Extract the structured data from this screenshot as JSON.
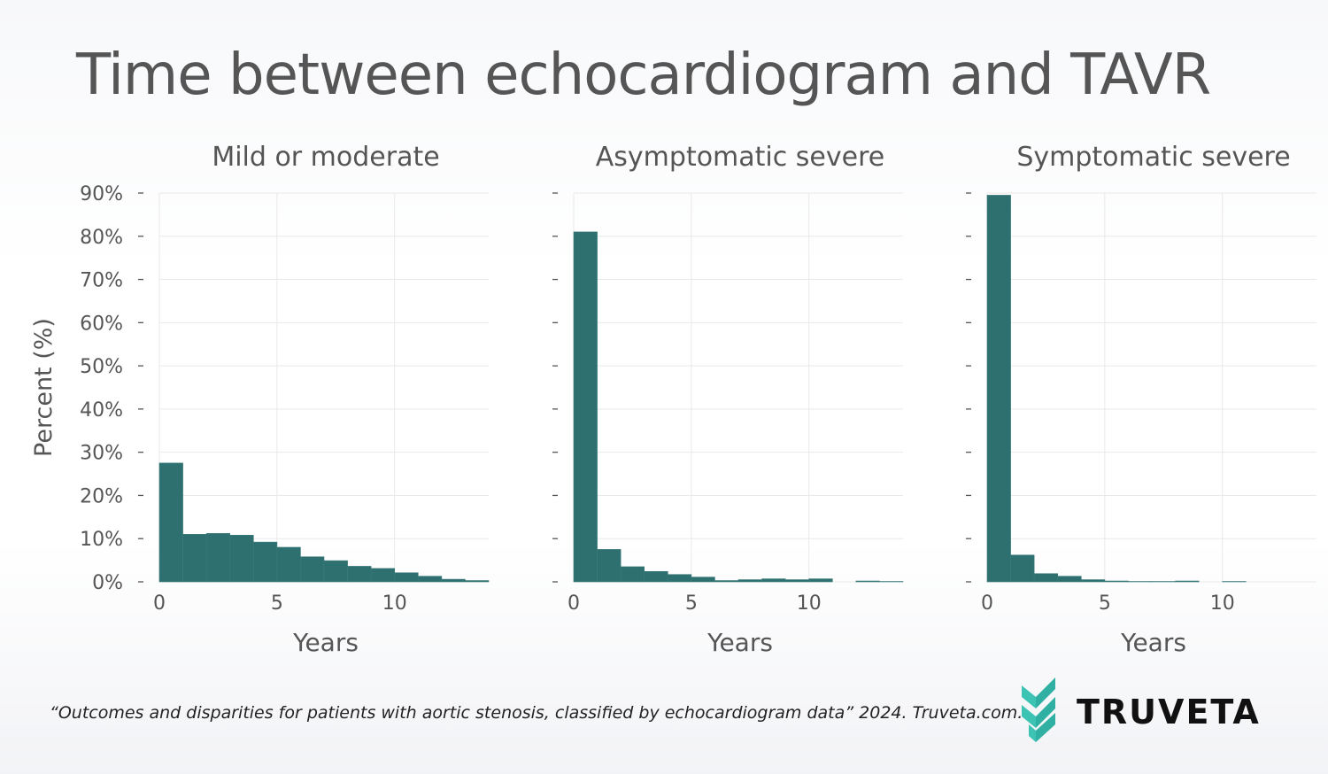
{
  "title": "Time between echocardiogram and TAVR",
  "citation": "“Outcomes and disparities for patients with aortic stenosis, classified by echocardiogram data” 2024. Truveta.com.",
  "brand": {
    "name": "TRUVETA",
    "logo_icon": "truveta-chevron-logo-icon",
    "logo_color": "#3cc3b4"
  },
  "colors": {
    "bar": "#2e7070",
    "grid": "#e9e9e9",
    "text": "#555555"
  },
  "chart_data": [
    {
      "type": "bar",
      "title": "Mild or moderate",
      "xlabel": "Years",
      "ylabel": "Percent (%)",
      "xlim": [
        0,
        14
      ],
      "ylim": [
        0,
        90
      ],
      "x_ticks": [
        0,
        5,
        10
      ],
      "y_ticks": [
        "0%",
        "10%",
        "20%",
        "30%",
        "40%",
        "50%",
        "60%",
        "70%",
        "80%",
        "90%"
      ],
      "bin_width": 1,
      "bins": [
        0,
        1,
        2,
        3,
        4,
        5,
        6,
        7,
        8,
        9,
        10,
        11,
        12,
        13
      ],
      "values": [
        27.5,
        11.0,
        11.2,
        10.8,
        9.2,
        8.0,
        5.8,
        4.9,
        3.6,
        3.1,
        2.1,
        1.3,
        0.6,
        0.3
      ]
    },
    {
      "type": "bar",
      "title": "Asymptomatic severe",
      "xlabel": "Years",
      "xlim": [
        0,
        14
      ],
      "ylim": [
        0,
        90
      ],
      "x_ticks": [
        0,
        5,
        10
      ],
      "bin_width": 1,
      "bins": [
        0,
        1,
        2,
        3,
        4,
        5,
        6,
        7,
        8,
        9,
        10,
        11,
        12,
        13
      ],
      "values": [
        81.0,
        7.5,
        3.5,
        2.4,
        1.7,
        1.1,
        0.3,
        0.5,
        0.7,
        0.5,
        0.7,
        0.0,
        0.2,
        0.1
      ]
    },
    {
      "type": "bar",
      "title": "Symptomatic severe",
      "xlabel": "Years",
      "xlim": [
        0,
        14
      ],
      "ylim": [
        0,
        90
      ],
      "x_ticks": [
        0,
        5,
        10
      ],
      "bin_width": 1,
      "bins": [
        0,
        1,
        2,
        3,
        4,
        5,
        6,
        7,
        8,
        9,
        10
      ],
      "values": [
        89.5,
        6.2,
        1.9,
        1.3,
        0.5,
        0.2,
        0.1,
        0.1,
        0.2,
        0.0,
        0.1
      ]
    }
  ]
}
